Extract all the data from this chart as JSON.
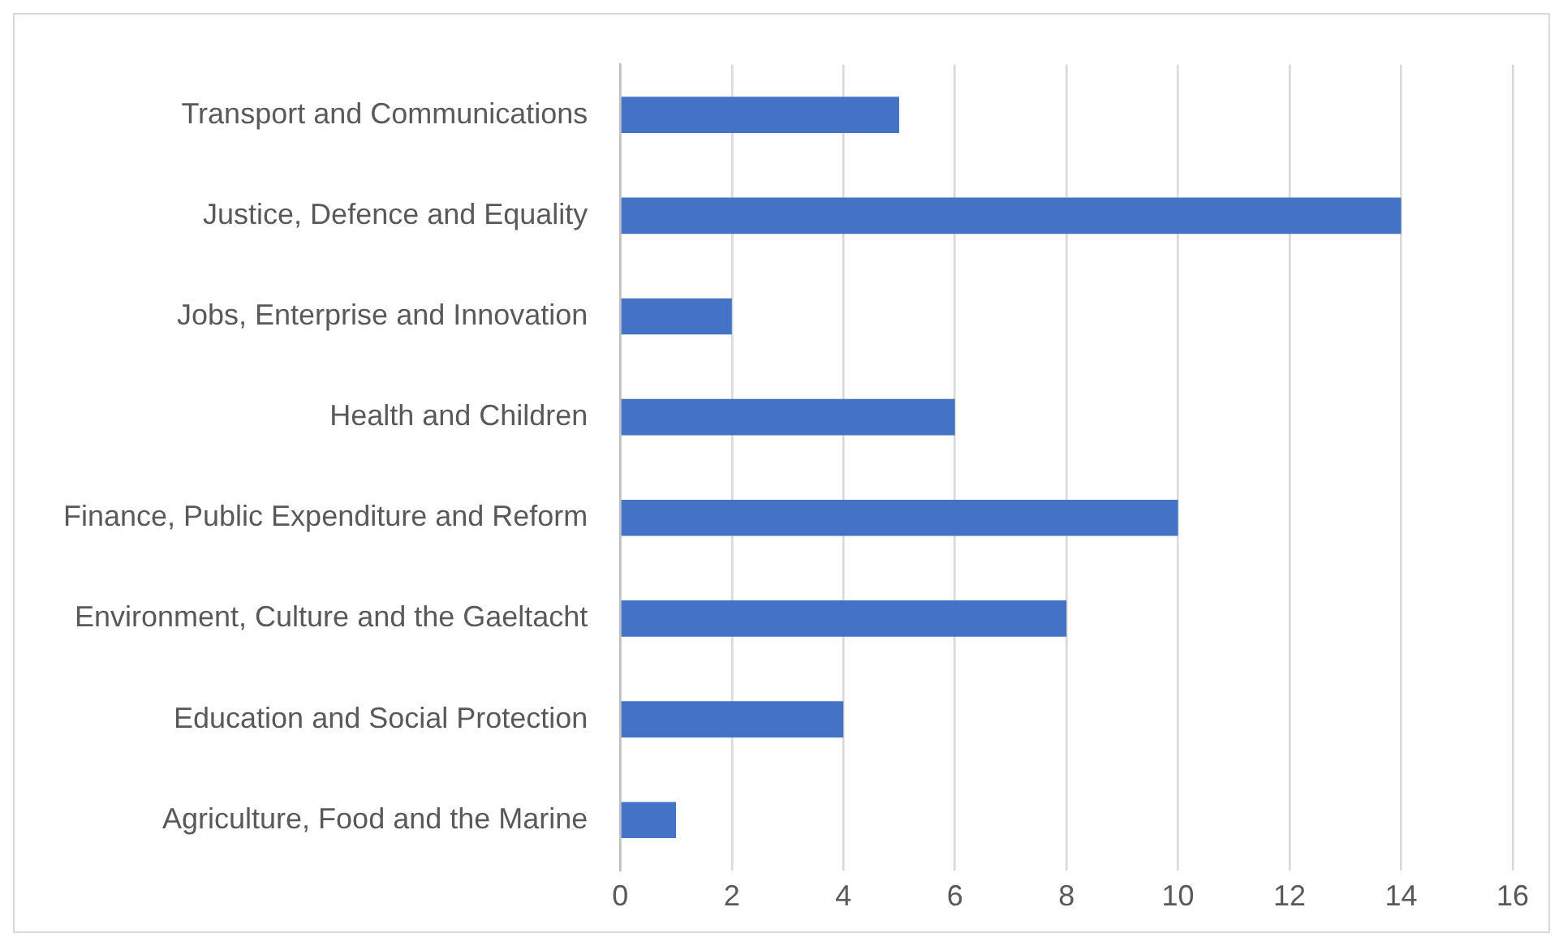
{
  "chart_data": {
    "type": "bar",
    "orientation": "horizontal",
    "categories": [
      "Transport and Communications",
      "Justice, Defence and Equality",
      "Jobs, Enterprise and Innovation",
      "Health and Children",
      "Finance, Public Expenditure and Reform",
      "Environment, Culture and the Gaeltacht",
      "Education and Social Protection",
      "Agriculture, Food and the Marine"
    ],
    "values": [
      5,
      14,
      2,
      6,
      10,
      8,
      4,
      1
    ],
    "color": "#4472c4",
    "xlim": [
      0,
      16
    ],
    "xticks": [
      0,
      2,
      4,
      6,
      8,
      10,
      12,
      14,
      16
    ],
    "grid": "x",
    "legend": false
  }
}
